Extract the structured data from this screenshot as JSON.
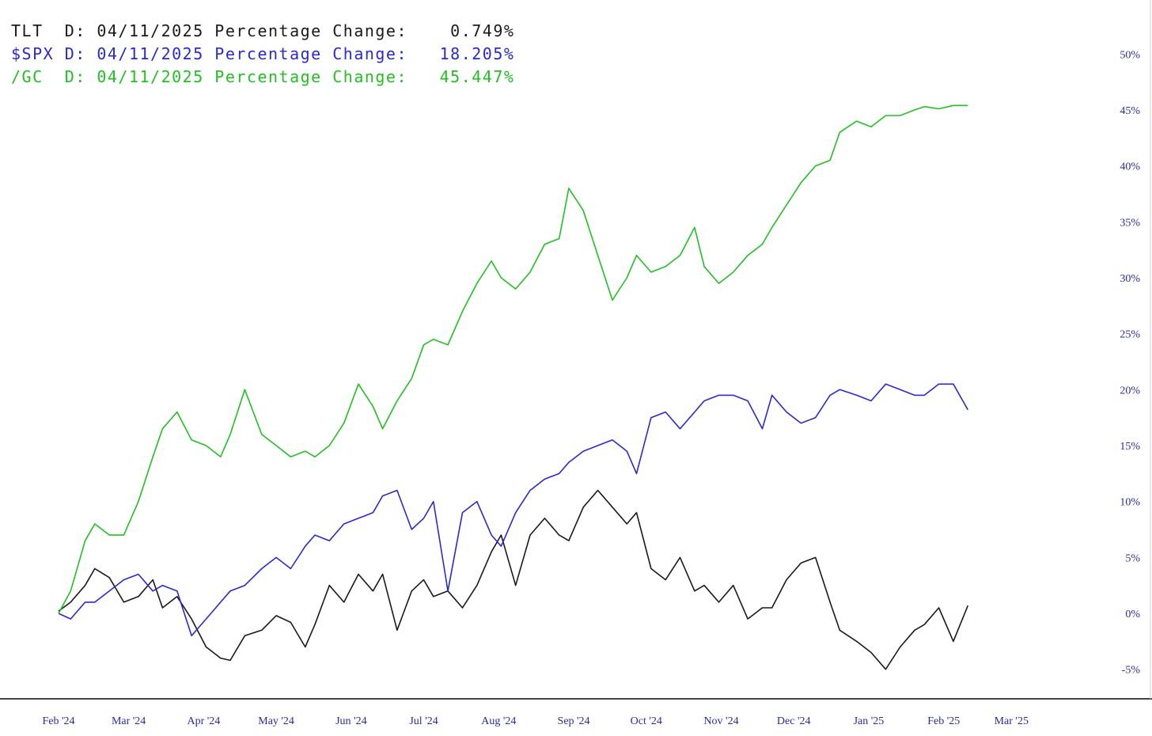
{
  "colors": {
    "TLT": "#1a1a1a",
    "SPX": "#2a2ad0",
    "GC": "#22c022",
    "axis_text": "#2a2aa8",
    "axis_line": "#444444"
  },
  "legend": [
    {
      "symbol": "TLT",
      "label": "TLT  D: 04/11/2025 Percentage Change:    0.749%"
    },
    {
      "symbol": "$SPX",
      "label": "$SPX D: 04/11/2025 Percentage Change:   18.205%"
    },
    {
      "symbol": "/GC",
      "label": "/GC  D: 04/11/2025 Percentage Change:   45.447%"
    }
  ],
  "chart_data": {
    "type": "line",
    "title": "",
    "xlabel": "",
    "ylabel": "",
    "grid": false,
    "y_axis_position": "right",
    "ylim": [
      -7,
      52
    ],
    "xlim": [
      "2024-02-01",
      "2025-03-31"
    ],
    "yticks": [
      {
        "value": 50,
        "label": "50%"
      },
      {
        "value": 45,
        "label": "45%"
      },
      {
        "value": 40,
        "label": "40%"
      },
      {
        "value": 35,
        "label": "35%"
      },
      {
        "value": 30,
        "label": "30%"
      },
      {
        "value": 25,
        "label": "25%"
      },
      {
        "value": 20,
        "label": "20%"
      },
      {
        "value": 15,
        "label": "15%"
      },
      {
        "value": 10,
        "label": "10%"
      },
      {
        "value": 5,
        "label": "5%"
      },
      {
        "value": 0,
        "label": "0%"
      },
      {
        "value": -5,
        "label": "-5%"
      }
    ],
    "xticks": [
      {
        "date": "2024-02-01",
        "label": "Feb '24"
      },
      {
        "date": "2024-03-01",
        "label": "Mar '24"
      },
      {
        "date": "2024-04-01",
        "label": "Apr '24"
      },
      {
        "date": "2024-05-01",
        "label": "May '24"
      },
      {
        "date": "2024-06-01",
        "label": "Jun '24"
      },
      {
        "date": "2024-07-01",
        "label": "Jul '24"
      },
      {
        "date": "2024-08-01",
        "label": "Aug '24"
      },
      {
        "date": "2024-09-01",
        "label": "Sep '24"
      },
      {
        "date": "2024-10-01",
        "label": "Oct '24"
      },
      {
        "date": "2024-11-01",
        "label": "Nov '24"
      },
      {
        "date": "2024-12-01",
        "label": "Dec '24"
      },
      {
        "date": "2025-01-01",
        "label": "Jan '25"
      },
      {
        "date": "2025-02-01",
        "label": "Feb '25"
      },
      {
        "date": "2025-03-01",
        "label": "Mar '25"
      }
    ],
    "series": [
      {
        "name": "TLT",
        "x": [
          "2024-02-01",
          "2024-02-06",
          "2024-02-12",
          "2024-02-16",
          "2024-02-22",
          "2024-02-28",
          "2024-03-05",
          "2024-03-11",
          "2024-03-15",
          "2024-03-21",
          "2024-03-27",
          "2024-04-02",
          "2024-04-08",
          "2024-04-12",
          "2024-04-18",
          "2024-04-25",
          "2024-05-01",
          "2024-05-07",
          "2024-05-13",
          "2024-05-17",
          "2024-05-23",
          "2024-05-29",
          "2024-06-04",
          "2024-06-10",
          "2024-06-14",
          "2024-06-20",
          "2024-06-26",
          "2024-07-01",
          "2024-07-05",
          "2024-07-11",
          "2024-07-17",
          "2024-07-23",
          "2024-07-29",
          "2024-08-02",
          "2024-08-08",
          "2024-08-14",
          "2024-08-20",
          "2024-08-26",
          "2024-08-30",
          "2024-09-05",
          "2024-09-11",
          "2024-09-17",
          "2024-09-23",
          "2024-09-27",
          "2024-10-03",
          "2024-10-09",
          "2024-10-15",
          "2024-10-21",
          "2024-10-25",
          "2024-10-31",
          "2024-11-06",
          "2024-11-12",
          "2024-11-18",
          "2024-11-22",
          "2024-11-28",
          "2024-12-04",
          "2024-12-10",
          "2024-12-16",
          "2024-12-20",
          "2024-12-27",
          "2025-01-02",
          "2025-01-08",
          "2025-01-14",
          "2025-01-20",
          "2025-01-24",
          "2025-01-30",
          "2025-02-05",
          "2025-02-11"
        ],
        "values": [
          0.2,
          1.0,
          2.5,
          4.0,
          3.2,
          1.0,
          1.5,
          3.0,
          0.5,
          1.5,
          -0.5,
          -3.0,
          -4.0,
          -4.2,
          -2.0,
          -1.5,
          -0.2,
          -0.8,
          -3.0,
          -1.0,
          2.5,
          1.0,
          3.5,
          2.0,
          3.5,
          -1.5,
          2.0,
          3.0,
          1.5,
          2.0,
          0.5,
          2.5,
          5.5,
          7.0,
          2.5,
          7.0,
          8.5,
          7.0,
          6.5,
          9.5,
          11.0,
          9.5,
          8.0,
          9.0,
          4.0,
          3.0,
          5.0,
          2.0,
          2.5,
          1.0,
          2.5,
          -0.5,
          0.5,
          0.5,
          3.0,
          4.5,
          5.0,
          1.0,
          -1.5,
          -2.5,
          -3.5,
          -5.0,
          -3.0,
          -1.5,
          -1.0,
          0.5,
          -2.5,
          0.7
        ]
      },
      {
        "name": "$SPX",
        "x": [
          "2024-02-01",
          "2024-02-06",
          "2024-02-12",
          "2024-02-16",
          "2024-02-22",
          "2024-02-28",
          "2024-03-05",
          "2024-03-11",
          "2024-03-15",
          "2024-03-21",
          "2024-03-27",
          "2024-04-02",
          "2024-04-08",
          "2024-04-12",
          "2024-04-18",
          "2024-04-25",
          "2024-05-01",
          "2024-05-07",
          "2024-05-13",
          "2024-05-17",
          "2024-05-23",
          "2024-05-29",
          "2024-06-04",
          "2024-06-10",
          "2024-06-14",
          "2024-06-20",
          "2024-06-26",
          "2024-07-01",
          "2024-07-05",
          "2024-07-11",
          "2024-07-17",
          "2024-07-23",
          "2024-07-29",
          "2024-08-02",
          "2024-08-08",
          "2024-08-14",
          "2024-08-20",
          "2024-08-26",
          "2024-08-30",
          "2024-09-05",
          "2024-09-11",
          "2024-09-17",
          "2024-09-23",
          "2024-09-27",
          "2024-10-03",
          "2024-10-09",
          "2024-10-15",
          "2024-10-21",
          "2024-10-25",
          "2024-10-31",
          "2024-11-06",
          "2024-11-12",
          "2024-11-18",
          "2024-11-22",
          "2024-11-28",
          "2024-12-04",
          "2024-12-10",
          "2024-12-16",
          "2024-12-20",
          "2024-12-27",
          "2025-01-02",
          "2025-01-08",
          "2025-01-14",
          "2025-01-20",
          "2025-01-24",
          "2025-01-30",
          "2025-02-05",
          "2025-02-11"
        ],
        "values": [
          0.0,
          -0.5,
          1.0,
          1.0,
          2.0,
          3.0,
          3.5,
          2.0,
          2.5,
          2.0,
          -2.0,
          -0.5,
          1.0,
          2.0,
          2.5,
          4.0,
          5.0,
          4.0,
          6.0,
          7.0,
          6.5,
          8.0,
          8.5,
          9.0,
          10.5,
          11.0,
          7.5,
          8.5,
          10.0,
          2.0,
          9.0,
          10.0,
          7.0,
          6.0,
          9.0,
          11.0,
          12.0,
          12.5,
          13.5,
          14.5,
          15.0,
          15.5,
          14.5,
          12.5,
          17.5,
          18.0,
          16.5,
          18.0,
          19.0,
          19.5,
          19.5,
          19.0,
          16.5,
          19.5,
          18.0,
          17.0,
          17.5,
          19.5,
          20.0,
          19.5,
          19.0,
          20.5,
          20.0,
          19.5,
          19.5,
          20.5,
          20.5,
          18.2
        ]
      },
      {
        "name": "/GC",
        "x": [
          "2024-02-01",
          "2024-02-06",
          "2024-02-12",
          "2024-02-16",
          "2024-02-22",
          "2024-02-28",
          "2024-03-05",
          "2024-03-11",
          "2024-03-15",
          "2024-03-21",
          "2024-03-27",
          "2024-04-02",
          "2024-04-08",
          "2024-04-12",
          "2024-04-18",
          "2024-04-25",
          "2024-05-01",
          "2024-05-07",
          "2024-05-13",
          "2024-05-17",
          "2024-05-23",
          "2024-05-29",
          "2024-06-04",
          "2024-06-10",
          "2024-06-14",
          "2024-06-20",
          "2024-06-26",
          "2024-07-01",
          "2024-07-05",
          "2024-07-11",
          "2024-07-17",
          "2024-07-23",
          "2024-07-29",
          "2024-08-02",
          "2024-08-08",
          "2024-08-14",
          "2024-08-20",
          "2024-08-26",
          "2024-08-30",
          "2024-09-05",
          "2024-09-11",
          "2024-09-17",
          "2024-09-23",
          "2024-09-27",
          "2024-10-03",
          "2024-10-09",
          "2024-10-15",
          "2024-10-21",
          "2024-10-25",
          "2024-10-31",
          "2024-11-06",
          "2024-11-12",
          "2024-11-18",
          "2024-11-22",
          "2024-11-28",
          "2024-12-04",
          "2024-12-10",
          "2024-12-16",
          "2024-12-20",
          "2024-12-27",
          "2025-01-02",
          "2025-01-08",
          "2025-01-14",
          "2025-01-20",
          "2025-01-24",
          "2025-01-30",
          "2025-02-05",
          "2025-02-11"
        ],
        "values": [
          0.0,
          2.0,
          6.5,
          8.0,
          7.0,
          7.0,
          10.0,
          14.0,
          16.5,
          18.0,
          15.5,
          15.0,
          14.0,
          16.0,
          20.0,
          16.0,
          15.0,
          14.0,
          14.5,
          14.0,
          15.0,
          17.0,
          20.5,
          18.5,
          16.5,
          19.0,
          21.0,
          24.0,
          24.5,
          24.0,
          27.0,
          29.5,
          31.5,
          30.0,
          29.0,
          30.5,
          33.0,
          33.5,
          38.0,
          36.0,
          32.0,
          28.0,
          30.0,
          32.0,
          30.5,
          31.0,
          32.0,
          34.5,
          31.0,
          29.5,
          30.5,
          32.0,
          33.0,
          34.5,
          36.5,
          38.5,
          40.0,
          40.5,
          43.0,
          44.0,
          43.5,
          44.5,
          44.5,
          45.0,
          45.3,
          45.1,
          45.4,
          45.4
        ]
      }
    ]
  }
}
